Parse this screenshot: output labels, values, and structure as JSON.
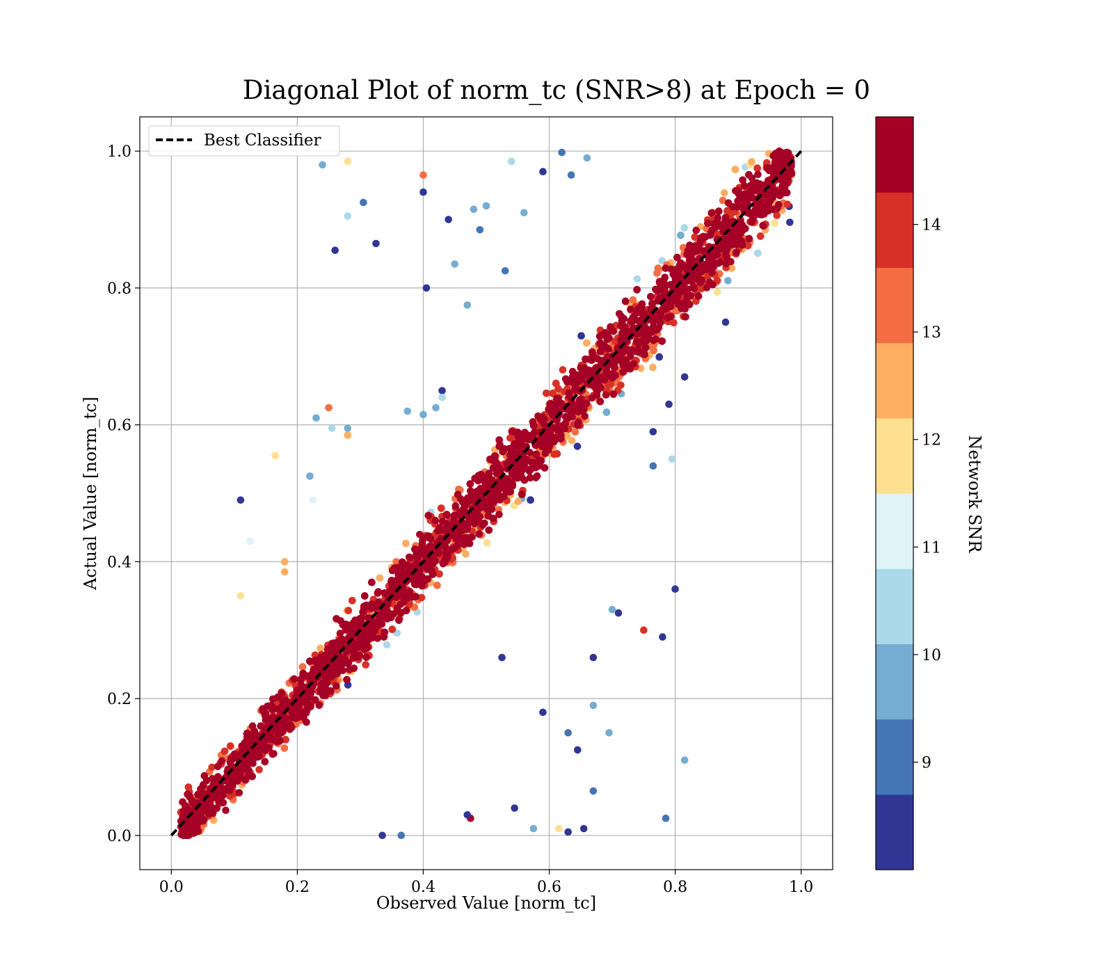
{
  "chart_data": {
    "type": "scatter",
    "title": "Diagonal Plot of norm_tc (SNR>8) at Epoch = 0",
    "xlabel": "Observed Value [norm_tc]",
    "ylabel": "Actual Value [norm_tc]",
    "xlim": [
      -0.05,
      1.05
    ],
    "ylim": [
      -0.05,
      1.05
    ],
    "xticks": [
      "0.0",
      "0.2",
      "0.4",
      "0.6",
      "0.8",
      "1.0"
    ],
    "yticks": [
      "0.0",
      "0.2",
      "0.4",
      "0.6",
      "0.8",
      "1.0"
    ],
    "grid": true,
    "legend": {
      "placement": "top-left",
      "entries": [
        "Best Classifier"
      ]
    },
    "reference_line": {
      "name": "Best Classifier",
      "style": "dashed",
      "color": "#000000",
      "x": [
        0.0,
        1.0
      ],
      "y": [
        0.0,
        1.0
      ]
    },
    "colorbar": {
      "label": "Network SNR",
      "range": [
        8,
        15
      ],
      "ticks": [
        "9",
        "10",
        "11",
        "12",
        "13",
        "14"
      ],
      "colors": [
        "#313695",
        "#4575b4",
        "#74add1",
        "#abd9e9",
        "#e0f3f8",
        "#fee090",
        "#fdae61",
        "#f46d43",
        "#d73027",
        "#a50026"
      ]
    },
    "series": [
      {
        "points_note_free": true,
        "outliers": [
          [
            0.24,
            0.98,
            9.5
          ],
          [
            0.28,
            0.985,
            12.0
          ],
          [
            0.4,
            0.965,
            13.3
          ],
          [
            0.4,
            0.94,
            8.3
          ],
          [
            0.305,
            0.925,
            9.0
          ],
          [
            0.28,
            0.905,
            10.5
          ],
          [
            0.26,
            0.855,
            8.3
          ],
          [
            0.325,
            0.865,
            8.3
          ],
          [
            0.405,
            0.8,
            8.3
          ],
          [
            0.11,
            0.49,
            8.3
          ],
          [
            0.165,
            0.555,
            12.0
          ],
          [
            0.25,
            0.625,
            13.3
          ],
          [
            0.23,
            0.61,
            10.0
          ],
          [
            0.28,
            0.595,
            10.0
          ],
          [
            0.255,
            0.595,
            10.5
          ],
          [
            0.28,
            0.585,
            12.5
          ],
          [
            0.22,
            0.525,
            10.0
          ],
          [
            0.225,
            0.49,
            11.2
          ],
          [
            0.125,
            0.43,
            11.2
          ],
          [
            0.11,
            0.35,
            12.0
          ],
          [
            0.18,
            0.4,
            12.5
          ],
          [
            0.18,
            0.385,
            12.5
          ],
          [
            0.54,
            0.985,
            10.5
          ],
          [
            0.59,
            0.97,
            8.3
          ],
          [
            0.635,
            0.965,
            9.0
          ],
          [
            0.66,
            0.99,
            10.0
          ],
          [
            0.62,
            0.998,
            9.0
          ],
          [
            0.49,
            0.885,
            9.0
          ],
          [
            0.44,
            0.9,
            8.3
          ],
          [
            0.48,
            0.915,
            10.0
          ],
          [
            0.5,
            0.92,
            10.0
          ],
          [
            0.56,
            0.91,
            10.0
          ],
          [
            0.45,
            0.835,
            10.0
          ],
          [
            0.47,
            0.775,
            10.0
          ],
          [
            0.53,
            0.825,
            9.0
          ],
          [
            0.43,
            0.65,
            8.3
          ],
          [
            0.42,
            0.625,
            10.0
          ],
          [
            0.375,
            0.62,
            10.0
          ],
          [
            0.4,
            0.615,
            10.0
          ],
          [
            0.43,
            0.64,
            10.5
          ],
          [
            0.71,
            0.325,
            8.3
          ],
          [
            0.7,
            0.33,
            10.0
          ],
          [
            0.8,
            0.36,
            8.3
          ],
          [
            0.75,
            0.3,
            14.0
          ],
          [
            0.78,
            0.29,
            8.3
          ],
          [
            0.67,
            0.26,
            8.3
          ],
          [
            0.67,
            0.19,
            10.0
          ],
          [
            0.695,
            0.15,
            10.0
          ],
          [
            0.63,
            0.15,
            9.0
          ],
          [
            0.645,
            0.125,
            8.3
          ],
          [
            0.67,
            0.065,
            9.0
          ],
          [
            0.815,
            0.11,
            10.0
          ],
          [
            0.785,
            0.025,
            9.0
          ],
          [
            0.615,
            0.01,
            12.0
          ],
          [
            0.63,
            0.005,
            8.3
          ],
          [
            0.655,
            0.01,
            8.3
          ],
          [
            0.475,
            0.025,
            14.5
          ],
          [
            0.47,
            0.03,
            8.3
          ],
          [
            0.59,
            0.18,
            8.3
          ],
          [
            0.575,
            0.01,
            10.0
          ],
          [
            0.335,
            0.0,
            8.3
          ],
          [
            0.365,
            0.0,
            9.0
          ],
          [
            0.525,
            0.26,
            8.3
          ],
          [
            0.545,
            0.04,
            8.3
          ],
          [
            0.815,
            0.67,
            8.3
          ],
          [
            0.79,
            0.63,
            8.3
          ],
          [
            0.765,
            0.59,
            8.3
          ],
          [
            0.765,
            0.54,
            9.0
          ],
          [
            0.795,
            0.55,
            10.5
          ],
          [
            0.88,
            0.75,
            8.3
          ],
          [
            0.77,
            0.74,
            10.5
          ]
        ]
      }
    ]
  }
}
